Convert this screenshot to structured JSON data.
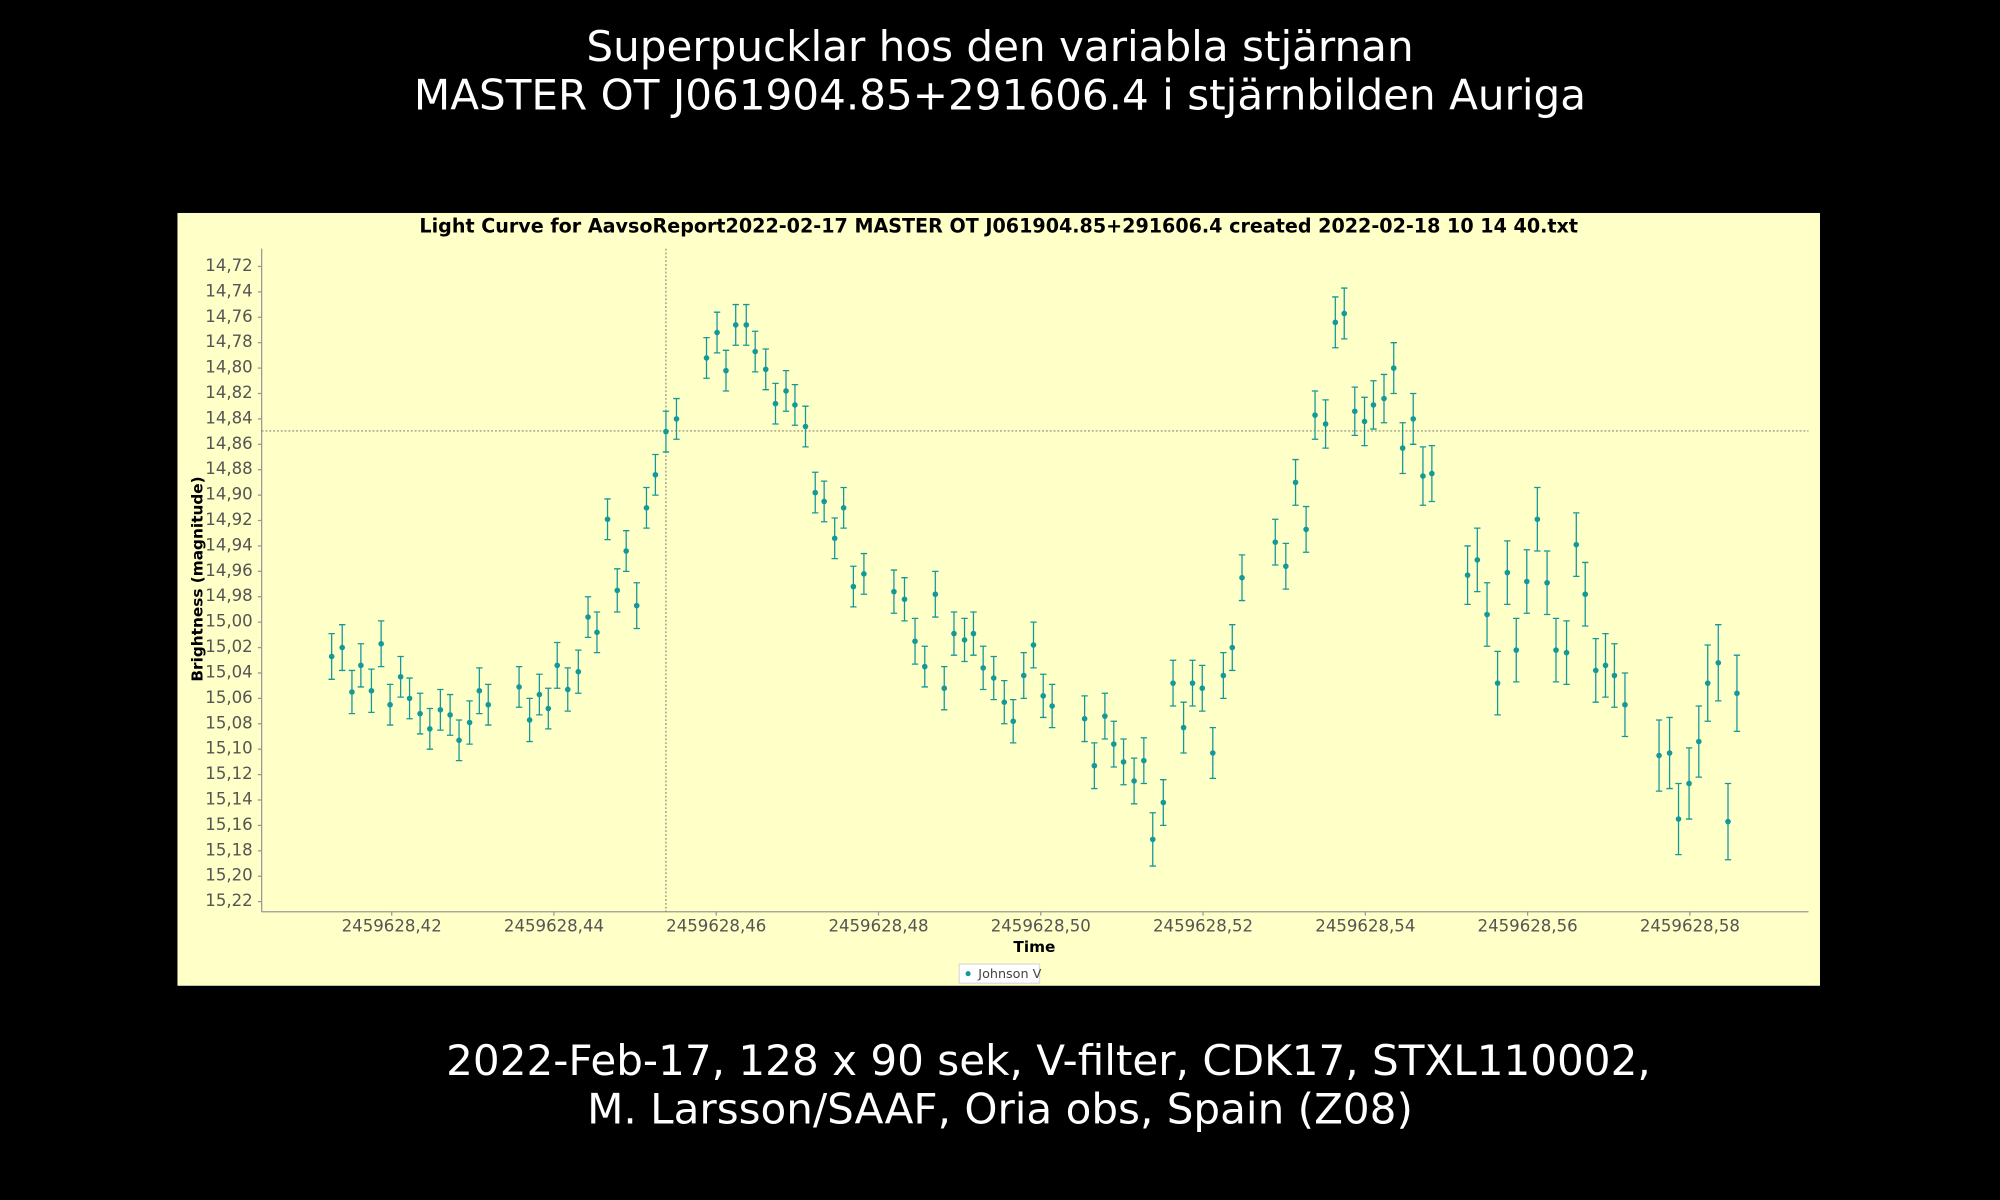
{
  "header": {
    "lines": [
      "Superpucklar hos den variabla stjärnan",
      "MASTER OT J061904.85+291606.4 i stjärnbilden Auriga"
    ]
  },
  "footer": {
    "lines": [
      "2022-Feb-17, 128 x 90 sek, V-filter, CDK17, STXL110002,",
      "M. Larsson/SAAF, Oria obs, Spain (Z08)"
    ]
  },
  "chart_data": {
    "type": "scatter",
    "title": "Light Curve for AavsoReport2022-02-17 MASTER OT J061904.85+291606.4 created 2022-02-18 10 14 40.txt",
    "x_label": "Time",
    "y_label": "Brightness (magnitude)",
    "xlim": [
      2459628.40397,
      2459628.59462
    ],
    "ylim": [
      14.706,
      15.228
    ],
    "y_inverted": true,
    "crosshair": {
      "x": 2459628.4538,
      "y": 14.8495
    },
    "legend": "bottom",
    "xticks": [
      {
        "value": 2459628.42,
        "label": "2459628,42"
      },
      {
        "value": 2459628.44,
        "label": "2459628,44"
      },
      {
        "value": 2459628.46,
        "label": "2459628,46"
      },
      {
        "value": 2459628.48,
        "label": "2459628,48"
      },
      {
        "value": 2459628.5,
        "label": "2459628,50"
      },
      {
        "value": 2459628.52,
        "label": "2459628,52"
      },
      {
        "value": 2459628.54,
        "label": "2459628,54"
      },
      {
        "value": 2459628.56,
        "label": "2459628,56"
      },
      {
        "value": 2459628.58,
        "label": "2459628,58"
      }
    ],
    "yticks": [
      {
        "value": 14.72,
        "label": "14,72"
      },
      {
        "value": 14.74,
        "label": "14,74"
      },
      {
        "value": 14.76,
        "label": "14,76"
      },
      {
        "value": 14.78,
        "label": "14,78"
      },
      {
        "value": 14.8,
        "label": "14,80"
      },
      {
        "value": 14.82,
        "label": "14,82"
      },
      {
        "value": 14.84,
        "label": "14,84"
      },
      {
        "value": 14.86,
        "label": "14,86"
      },
      {
        "value": 14.88,
        "label": "14,88"
      },
      {
        "value": 14.9,
        "label": "14,90"
      },
      {
        "value": 14.92,
        "label": "14,92"
      },
      {
        "value": 14.94,
        "label": "14,94"
      },
      {
        "value": 14.96,
        "label": "14,96"
      },
      {
        "value": 14.98,
        "label": "14,98"
      },
      {
        "value": 15.0,
        "label": "15,00"
      },
      {
        "value": 15.02,
        "label": "15,02"
      },
      {
        "value": 15.04,
        "label": "15,04"
      },
      {
        "value": 15.06,
        "label": "15,06"
      },
      {
        "value": 15.08,
        "label": "15,08"
      },
      {
        "value": 15.1,
        "label": "15,10"
      },
      {
        "value": 15.12,
        "label": "15,12"
      },
      {
        "value": 15.14,
        "label": "15,14"
      },
      {
        "value": 15.16,
        "label": "15,16"
      },
      {
        "value": 15.18,
        "label": "15,18"
      },
      {
        "value": 15.2,
        "label": "15,20"
      },
      {
        "value": 15.22,
        "label": "15,22"
      }
    ],
    "series": [
      {
        "name": "Johnson V",
        "color": "#14999a",
        "x": [
          2459628.4126,
          2459628.4139,
          2459628.4151,
          2459628.4162,
          2459628.4175,
          2459628.4187,
          2459628.4198,
          2459628.4211,
          2459628.4222,
          2459628.4235,
          2459628.4247,
          2459628.426,
          2459628.4272,
          2459628.4283,
          2459628.4296,
          2459628.4308,
          2459628.4319,
          2459628.4357,
          2459628.437,
          2459628.4382,
          2459628.4393,
          2459628.4404,
          2459628.4417,
          2459628.443,
          2459628.4442,
          2459628.4453,
          2459628.4466,
          2459628.4478,
          2459628.4489,
          2459628.4502,
          2459628.4514,
          2459628.4525,
          2459628.4538,
          2459628.4551,
          2459628.4588,
          2459628.4601,
          2459628.4612,
          2459628.4624,
          2459628.4637,
          2459628.4648,
          2459628.4661,
          2459628.4673,
          2459628.4686,
          2459628.4697,
          2459628.471,
          2459628.4722,
          2459628.4733,
          2459628.4746,
          2459628.4757,
          2459628.4769,
          2459628.4782,
          2459628.4819,
          2459628.4832,
          2459628.4845,
          2459628.4857,
          2459628.487,
          2459628.4881,
          2459628.4893,
          2459628.4906,
          2459628.4917,
          2459628.4929,
          2459628.4942,
          2459628.4955,
          2459628.4966,
          2459628.4979,
          2459628.4991,
          2459628.5003,
          2459628.5014,
          2459628.5054,
          2459628.5066,
          2459628.5079,
          2459628.509,
          2459628.5102,
          2459628.5115,
          2459628.5127,
          2459628.5138,
          2459628.5151,
          2459628.5163,
          2459628.5176,
          2459628.5187,
          2459628.5199,
          2459628.5212,
          2459628.5225,
          2459628.5236,
          2459628.5248,
          2459628.5289,
          2459628.5302,
          2459628.5314,
          2459628.5327,
          2459628.5338,
          2459628.5351,
          2459628.5363,
          2459628.5374,
          2459628.5387,
          2459628.5399,
          2459628.541,
          2459628.5423,
          2459628.5435,
          2459628.5446,
          2459628.5459,
          2459628.5471,
          2459628.5482,
          2459628.5526,
          2459628.5538,
          2459628.555,
          2459628.5563,
          2459628.5575,
          2459628.5586,
          2459628.5599,
          2459628.5612,
          2459628.5624,
          2459628.5635,
          2459628.5648,
          2459628.566,
          2459628.5671,
          2459628.5684,
          2459628.5696,
          2459628.5707,
          2459628.572,
          2459628.5762,
          2459628.5775,
          2459628.5786,
          2459628.5799,
          2459628.5811,
          2459628.5822,
          2459628.5835,
          2459628.5847,
          2459628.5858
        ],
        "values": [
          15.027,
          15.02,
          15.055,
          15.034,
          15.054,
          15.017,
          15.065,
          15.043,
          15.06,
          15.072,
          15.084,
          15.069,
          15.073,
          15.093,
          15.079,
          15.054,
          15.065,
          15.051,
          15.077,
          15.057,
          15.068,
          15.034,
          15.053,
          15.039,
          14.996,
          15.008,
          14.919,
          14.975,
          14.944,
          14.987,
          14.91,
          14.884,
          14.85,
          14.84,
          14.792,
          14.772,
          14.802,
          14.766,
          14.766,
          14.787,
          14.801,
          14.828,
          14.818,
          14.829,
          14.846,
          14.898,
          14.905,
          14.934,
          14.91,
          14.972,
          14.962,
          14.976,
          14.982,
          15.015,
          15.035,
          14.978,
          15.052,
          15.009,
          15.014,
          15.009,
          15.036,
          15.044,
          15.063,
          15.078,
          15.042,
          15.018,
          15.058,
          15.066,
          15.076,
          15.113,
          15.074,
          15.096,
          15.11,
          15.125,
          15.109,
          15.171,
          15.142,
          15.048,
          15.083,
          15.048,
          15.052,
          15.103,
          15.042,
          15.02,
          14.965,
          14.937,
          14.956,
          14.89,
          14.927,
          14.837,
          14.844,
          14.764,
          14.757,
          14.834,
          14.842,
          14.829,
          14.824,
          14.8,
          14.863,
          14.84,
          14.885,
          14.883,
          14.963,
          14.951,
          14.994,
          15.048,
          14.961,
          15.022,
          14.968,
          14.919,
          14.969,
          15.022,
          15.024,
          14.939,
          14.978,
          15.038,
          15.034,
          15.042,
          15.065,
          15.105,
          15.103,
          15.155,
          15.127,
          15.094,
          15.048,
          15.032,
          15.157,
          15.056
        ],
        "errors": [
          0.018,
          0.018,
          0.017,
          0.017,
          0.017,
          0.018,
          0.016,
          0.016,
          0.016,
          0.016,
          0.016,
          0.016,
          0.016,
          0.016,
          0.017,
          0.018,
          0.016,
          0.016,
          0.017,
          0.016,
          0.016,
          0.018,
          0.017,
          0.017,
          0.016,
          0.016,
          0.016,
          0.017,
          0.016,
          0.018,
          0.016,
          0.016,
          0.016,
          0.016,
          0.016,
          0.016,
          0.016,
          0.016,
          0.016,
          0.016,
          0.016,
          0.016,
          0.016,
          0.016,
          0.016,
          0.016,
          0.016,
          0.016,
          0.016,
          0.016,
          0.016,
          0.017,
          0.017,
          0.018,
          0.016,
          0.018,
          0.017,
          0.017,
          0.017,
          0.017,
          0.017,
          0.017,
          0.017,
          0.017,
          0.018,
          0.018,
          0.017,
          0.017,
          0.018,
          0.018,
          0.018,
          0.018,
          0.018,
          0.018,
          0.018,
          0.021,
          0.018,
          0.018,
          0.02,
          0.018,
          0.018,
          0.02,
          0.018,
          0.018,
          0.018,
          0.018,
          0.018,
          0.018,
          0.018,
          0.019,
          0.019,
          0.02,
          0.02,
          0.019,
          0.019,
          0.019,
          0.019,
          0.02,
          0.02,
          0.02,
          0.023,
          0.022,
          0.023,
          0.025,
          0.025,
          0.025,
          0.025,
          0.025,
          0.025,
          0.025,
          0.025,
          0.025,
          0.025,
          0.025,
          0.025,
          0.025,
          0.025,
          0.025,
          0.025,
          0.028,
          0.028,
          0.028,
          0.028,
          0.028,
          0.03,
          0.03,
          0.03,
          0.03
        ]
      }
    ]
  }
}
